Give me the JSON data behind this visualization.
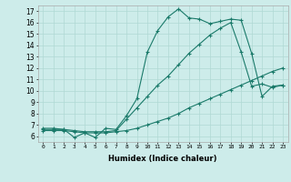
{
  "xlabel": "Humidex (Indice chaleur)",
  "ylabel": "",
  "bg_color": "#cdecea",
  "grid_color": "#b0d8d4",
  "line_color": "#1a7a6a",
  "xlim": [
    -0.5,
    23.5
  ],
  "ylim": [
    5.5,
    17.5
  ],
  "yticks": [
    6,
    7,
    8,
    9,
    10,
    11,
    12,
    13,
    14,
    15,
    16,
    17
  ],
  "xticks": [
    0,
    1,
    2,
    3,
    4,
    5,
    6,
    7,
    8,
    9,
    10,
    11,
    12,
    13,
    14,
    15,
    16,
    17,
    18,
    19,
    20,
    21,
    22,
    23
  ],
  "line1_x": [
    0,
    1,
    2,
    3,
    4,
    5,
    6,
    7,
    8,
    9,
    10,
    11,
    12,
    13,
    14,
    15,
    16,
    17,
    18,
    19,
    20,
    21,
    22,
    23
  ],
  "line1_y": [
    6.7,
    6.7,
    6.6,
    5.9,
    6.3,
    5.9,
    6.7,
    6.6,
    7.8,
    9.3,
    13.4,
    15.3,
    16.5,
    17.2,
    16.4,
    16.3,
    15.9,
    16.1,
    16.3,
    16.2,
    13.3,
    9.5,
    10.4,
    10.5
  ],
  "line2_x": [
    0,
    1,
    2,
    3,
    4,
    5,
    6,
    7,
    8,
    9,
    10,
    11,
    12,
    13,
    14,
    15,
    16,
    17,
    18,
    19,
    20,
    21,
    22,
    23
  ],
  "line2_y": [
    6.6,
    6.6,
    6.6,
    6.5,
    6.4,
    6.4,
    6.4,
    6.5,
    7.5,
    8.5,
    9.5,
    10.5,
    11.3,
    12.3,
    13.3,
    14.1,
    14.9,
    15.5,
    16.0,
    13.4,
    10.4,
    10.6,
    10.3,
    10.5
  ],
  "line3_x": [
    0,
    1,
    2,
    3,
    4,
    5,
    6,
    7,
    8,
    9,
    10,
    11,
    12,
    13,
    14,
    15,
    16,
    17,
    18,
    19,
    20,
    21,
    22,
    23
  ],
  "line3_y": [
    6.5,
    6.5,
    6.5,
    6.4,
    6.3,
    6.3,
    6.3,
    6.4,
    6.5,
    6.7,
    7.0,
    7.3,
    7.6,
    8.0,
    8.5,
    8.9,
    9.3,
    9.7,
    10.1,
    10.5,
    10.9,
    11.3,
    11.7,
    12.0
  ]
}
